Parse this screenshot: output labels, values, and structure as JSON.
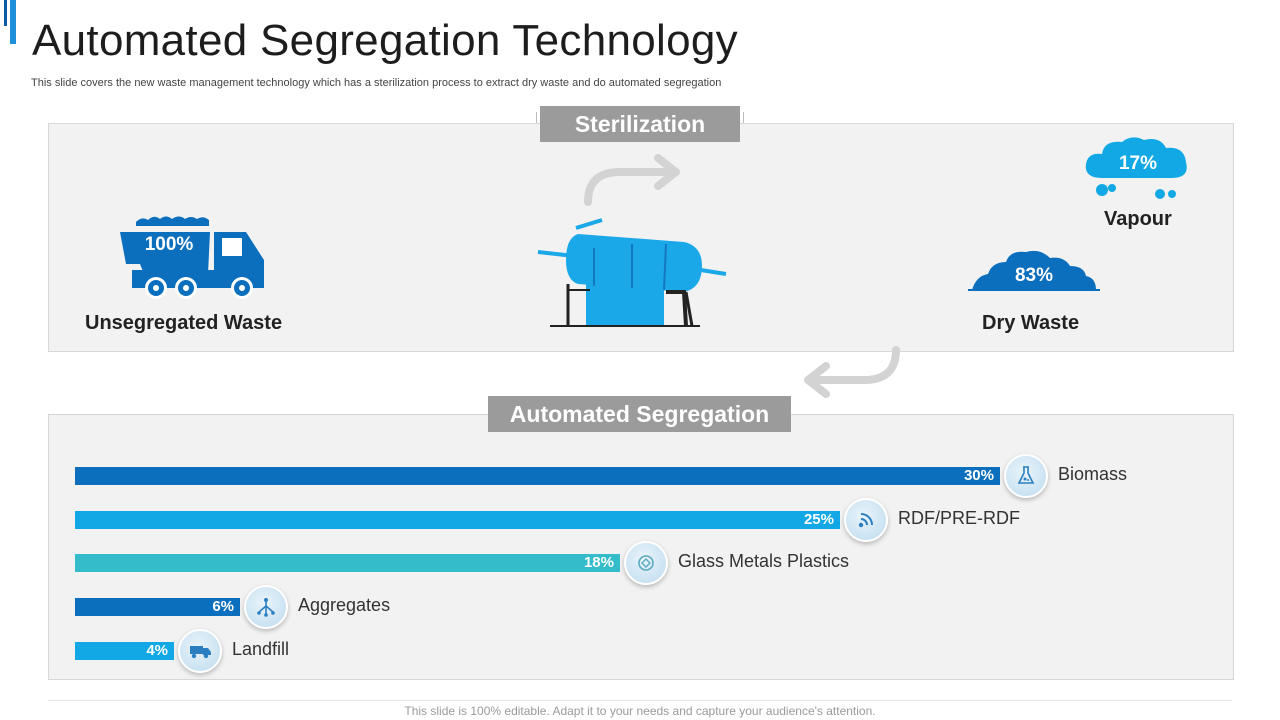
{
  "header": {
    "title": "Automated Segregation Technology",
    "subtitle": "This slide covers the new waste management technology which has a sterilization process to extract dry waste and do automated segregation"
  },
  "sterilization": {
    "label": "Sterilization",
    "unsegregated": {
      "percent": "100%",
      "label": "Unsegregated Waste"
    },
    "vapour": {
      "percent": "17%",
      "label": "Vapour"
    },
    "dry_waste": {
      "percent": "83%",
      "label": "Dry Waste"
    }
  },
  "segregation": {
    "label": "Automated Segregation",
    "bars": [
      {
        "value_text": "30%",
        "value": 30,
        "name": "Biomass",
        "color": "#0b6fbd",
        "icon": "flask-icon"
      },
      {
        "value_text": "25%",
        "value": 25,
        "name": "RDF/PRE-RDF",
        "color": "#12a8e6",
        "icon": "signal-icon"
      },
      {
        "value_text": "18%",
        "value": 18,
        "name": "Glass Metals Plastics",
        "color": "#35bccb",
        "icon": "recycle-icon"
      },
      {
        "value_text": "6%",
        "value": 6,
        "name": "Aggregates",
        "color": "#0b6fbd",
        "icon": "network-icon"
      },
      {
        "value_text": "4%",
        "value": 4,
        "name": "Landfill",
        "color": "#12a8e6",
        "icon": "truck-icon"
      }
    ]
  },
  "colors": {
    "accent": "#1e8fd8",
    "dark_blue": "#0b6fbd",
    "light_blue": "#12a8e6",
    "teal": "#35bccb",
    "label_gray": "#9b9b9b"
  },
  "footer": {
    "text": "This slide is 100% editable. Adapt it to your needs and capture your audience's attention."
  }
}
